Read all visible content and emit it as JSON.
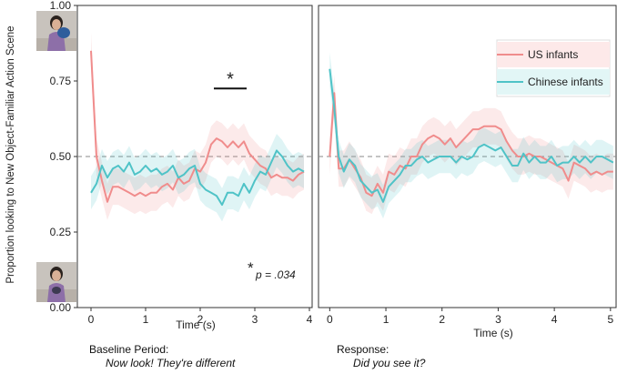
{
  "chart_data": {
    "type": "line",
    "ylabel": "Proportion looking to New Object-Familiar Action Scene",
    "ylim": [
      0,
      1
    ],
    "yticks": [
      "0.00",
      "0.25",
      "0.50",
      "0.75",
      "1.00"
    ],
    "reference_line": 0.5,
    "legend": [
      "US infants",
      "Chinese infants"
    ],
    "colors": {
      "US infants": "#f08c8c",
      "Chinese infants": "#4fc3c7"
    },
    "panels": [
      {
        "name": "baseline",
        "xlabel": "Time (s)",
        "xlim": [
          -0.25,
          4.05
        ],
        "xticks": [
          "0",
          "1",
          "2",
          "3",
          "4"
        ],
        "caption_title": "Baseline Period:",
        "caption_quote": "Now look! They're different",
        "significance_marker": "*",
        "significance_range": [
          2.25,
          2.85
        ],
        "significance_y": 0.725,
        "p_value_star": "*",
        "p_value_label": "p = .034",
        "series": [
          {
            "name": "US infants",
            "x": [
              0,
              0.1,
              0.2,
              0.3,
              0.4,
              0.5,
              0.6,
              0.7,
              0.8,
              0.9,
              1.0,
              1.1,
              1.2,
              1.3,
              1.4,
              1.5,
              1.6,
              1.7,
              1.8,
              1.9,
              2.0,
              2.1,
              2.2,
              2.3,
              2.4,
              2.5,
              2.6,
              2.7,
              2.8,
              2.9,
              3.0,
              3.1,
              3.2,
              3.3,
              3.4,
              3.5,
              3.6,
              3.7,
              3.8,
              3.9
            ],
            "values": [
              0.85,
              0.5,
              0.42,
              0.35,
              0.4,
              0.4,
              0.39,
              0.38,
              0.37,
              0.38,
              0.37,
              0.38,
              0.38,
              0.4,
              0.41,
              0.39,
              0.43,
              0.41,
              0.42,
              0.46,
              0.45,
              0.48,
              0.54,
              0.56,
              0.55,
              0.53,
              0.55,
              0.53,
              0.55,
              0.51,
              0.49,
              0.47,
              0.46,
              0.43,
              0.44,
              0.43,
              0.43,
              0.42,
              0.44,
              0.45
            ],
            "band": 0.06
          },
          {
            "name": "Chinese infants",
            "x": [
              0,
              0.1,
              0.2,
              0.3,
              0.4,
              0.5,
              0.6,
              0.7,
              0.8,
              0.9,
              1.0,
              1.1,
              1.2,
              1.3,
              1.4,
              1.5,
              1.6,
              1.7,
              1.8,
              1.9,
              2.0,
              2.1,
              2.2,
              2.3,
              2.4,
              2.5,
              2.6,
              2.7,
              2.8,
              2.9,
              3.0,
              3.1,
              3.2,
              3.3,
              3.4,
              3.5,
              3.6,
              3.7,
              3.8,
              3.9
            ],
            "values": [
              0.38,
              0.41,
              0.47,
              0.43,
              0.46,
              0.47,
              0.45,
              0.48,
              0.44,
              0.45,
              0.47,
              0.45,
              0.46,
              0.44,
              0.45,
              0.47,
              0.43,
              0.44,
              0.46,
              0.47,
              0.41,
              0.39,
              0.38,
              0.37,
              0.34,
              0.38,
              0.38,
              0.37,
              0.41,
              0.38,
              0.42,
              0.45,
              0.44,
              0.48,
              0.52,
              0.5,
              0.47,
              0.45,
              0.46,
              0.45
            ],
            "band": 0.055
          }
        ]
      },
      {
        "name": "response",
        "xlabel": "Time (s)",
        "xlim": [
          -0.2,
          5.1
        ],
        "xticks": [
          "0",
          "1",
          "2",
          "3",
          "4",
          "5"
        ],
        "caption_title": "Response:",
        "caption_quote": "Did you see it?",
        "series": [
          {
            "name": "US infants",
            "x": [
              0,
              0.08,
              0.16,
              0.25,
              0.35,
              0.45,
              0.55,
              0.65,
              0.75,
              0.85,
              0.95,
              1.05,
              1.15,
              1.25,
              1.35,
              1.45,
              1.55,
              1.65,
              1.75,
              1.85,
              1.95,
              2.05,
              2.15,
              2.25,
              2.35,
              2.45,
              2.55,
              2.65,
              2.75,
              2.85,
              2.95,
              3.05,
              3.15,
              3.25,
              3.35,
              3.45,
              3.55,
              3.65,
              3.75,
              3.85,
              3.95,
              4.05,
              4.15,
              4.25,
              4.35,
              4.45,
              4.55,
              4.65,
              4.75,
              4.85,
              4.95,
              5.05
            ],
            "values": [
              0.5,
              0.71,
              0.46,
              0.46,
              0.49,
              0.46,
              0.43,
              0.38,
              0.37,
              0.41,
              0.38,
              0.45,
              0.44,
              0.47,
              0.46,
              0.5,
              0.5,
              0.54,
              0.56,
              0.57,
              0.56,
              0.54,
              0.56,
              0.53,
              0.55,
              0.57,
              0.59,
              0.59,
              0.6,
              0.6,
              0.6,
              0.59,
              0.55,
              0.52,
              0.5,
              0.5,
              0.51,
              0.5,
              0.5,
              0.49,
              0.48,
              0.47,
              0.46,
              0.42,
              0.48,
              0.47,
              0.46,
              0.44,
              0.45,
              0.44,
              0.45,
              0.45
            ],
            "band": 0.06
          },
          {
            "name": "Chinese infants",
            "x": [
              0,
              0.08,
              0.16,
              0.25,
              0.35,
              0.45,
              0.55,
              0.65,
              0.75,
              0.85,
              0.95,
              1.05,
              1.15,
              1.25,
              1.35,
              1.45,
              1.55,
              1.65,
              1.75,
              1.85,
              1.95,
              2.05,
              2.15,
              2.25,
              2.35,
              2.45,
              2.55,
              2.65,
              2.75,
              2.85,
              2.95,
              3.05,
              3.15,
              3.25,
              3.35,
              3.45,
              3.55,
              3.65,
              3.75,
              3.85,
              3.95,
              4.05,
              4.15,
              4.25,
              4.35,
              4.45,
              4.55,
              4.65,
              4.75,
              4.85,
              4.95,
              5.05
            ],
            "values": [
              0.79,
              0.66,
              0.5,
              0.45,
              0.49,
              0.47,
              0.42,
              0.4,
              0.38,
              0.39,
              0.35,
              0.4,
              0.42,
              0.44,
              0.47,
              0.47,
              0.49,
              0.5,
              0.48,
              0.49,
              0.5,
              0.5,
              0.5,
              0.48,
              0.5,
              0.49,
              0.5,
              0.53,
              0.54,
              0.53,
              0.52,
              0.53,
              0.5,
              0.47,
              0.47,
              0.51,
              0.48,
              0.5,
              0.48,
              0.48,
              0.5,
              0.47,
              0.48,
              0.48,
              0.5,
              0.48,
              0.5,
              0.48,
              0.5,
              0.5,
              0.49,
              0.48
            ],
            "band": 0.055
          }
        ]
      }
    ]
  }
}
